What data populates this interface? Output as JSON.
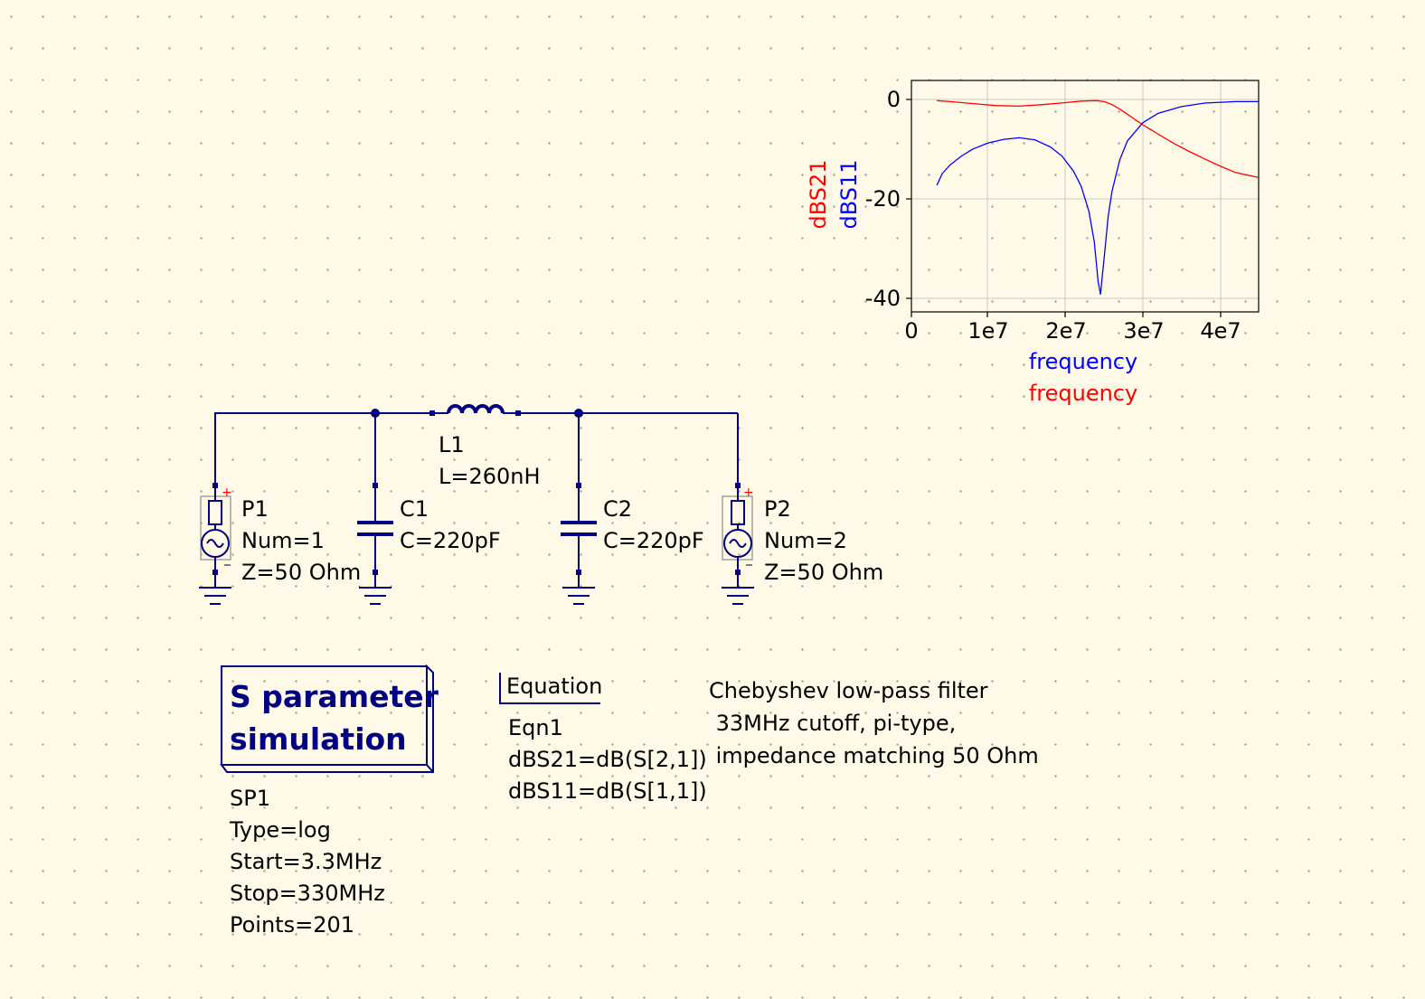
{
  "schematic": {
    "ports": [
      {
        "name": "P1",
        "num": "Num=1",
        "z": "Z=50 Ohm"
      },
      {
        "name": "P2",
        "num": "Num=2",
        "z": "Z=50 Ohm"
      }
    ],
    "capacitors": [
      {
        "name": "C1",
        "value": "C=220pF"
      },
      {
        "name": "C2",
        "value": "C=220pF"
      }
    ],
    "inductor": {
      "name": "L1",
      "value": "L=260nH"
    }
  },
  "simulation": {
    "title_line1": "S parameter",
    "title_line2": "simulation",
    "params": [
      "SP1",
      "Type=log",
      "Start=3.3MHz",
      "Stop=330MHz",
      "Points=201"
    ]
  },
  "equation": {
    "title": "Equation",
    "lines": [
      "Eqn1",
      "dBS21=dB(S[2,1])",
      "dBS11=dB(S[1,1])"
    ]
  },
  "note": {
    "lines": [
      "Chebyshev low-pass filter",
      " 33MHz cutoff, pi-type,",
      " impedance matching 50 Ohm"
    ]
  },
  "colors": {
    "wire": "#000080",
    "s21": "#ff0000",
    "s11": "#0000ff",
    "background": "#fffae8"
  },
  "chart_data": {
    "type": "line",
    "x_tick_labels": [
      "0",
      "1e7",
      "2e7",
      "3e7",
      "4e7"
    ],
    "y_tick_labels": [
      "0",
      "-20",
      "-40"
    ],
    "xlim": [
      0,
      45000000
    ],
    "ylim": [
      -42,
      4
    ],
    "grid": true,
    "y_axis_labels": [
      {
        "text": "dBS21",
        "color": "#ff0000"
      },
      {
        "text": "dBS11",
        "color": "#0000ff"
      }
    ],
    "x_axis_labels": [
      {
        "text": "frequency",
        "color": "#0000ff"
      },
      {
        "text": "frequency",
        "color": "#ff0000"
      }
    ],
    "series": [
      {
        "name": "dBS21",
        "color": "#ff0000",
        "x": [
          3300000,
          5000000,
          8000000,
          11000000,
          14000000,
          17000000,
          20000000,
          22000000,
          24000000,
          25000000,
          26000000,
          27000000,
          28000000,
          29000000,
          30000000,
          32000000,
          34000000,
          36000000,
          38000000,
          40000000,
          42000000,
          45000000
        ],
        "y": [
          0,
          -0.2,
          -0.6,
          -1.0,
          -1.1,
          -0.8,
          -0.4,
          -0.1,
          0,
          -0.2,
          -0.8,
          -1.7,
          -2.7,
          -3.8,
          -4.8,
          -6.7,
          -8.5,
          -10.1,
          -11.6,
          -13.0,
          -14.3,
          -15.3
        ]
      },
      {
        "name": "dBS11",
        "color": "#0000ff",
        "x": [
          3300000,
          4000000,
          5000000,
          6500000,
          8000000,
          10000000,
          12000000,
          14000000,
          16000000,
          18000000,
          19500000,
          21000000,
          22000000,
          23000000,
          23700000,
          24200000,
          24500000,
          25000000,
          25500000,
          26000000,
          27000000,
          28000000,
          30000000,
          32000000,
          35000000,
          38000000,
          42000000,
          45000000
        ],
        "y": [
          -16.8,
          -14.5,
          -12.8,
          -11,
          -9.6,
          -8.4,
          -7.7,
          -7.4,
          -7.8,
          -9.2,
          -11,
          -14,
          -17,
          -22,
          -28,
          -36,
          -38.5,
          -31,
          -23,
          -18,
          -11.8,
          -8,
          -4.4,
          -2.5,
          -1.2,
          -0.5,
          -0.2,
          -0.2
        ]
      }
    ]
  }
}
